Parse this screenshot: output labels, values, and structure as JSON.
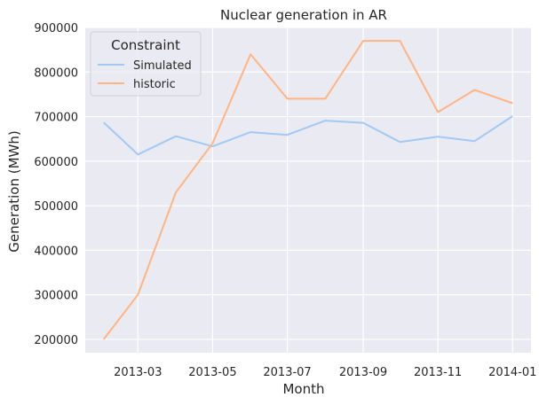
{
  "chart_data": {
    "type": "line",
    "title": "Nuclear generation in AR",
    "xlabel": "Month",
    "ylabel": "Generation (MWh)",
    "x": [
      "2013-02-01",
      "2013-03-01",
      "2013-04-01",
      "2013-05-01",
      "2013-06-01",
      "2013-07-01",
      "2013-08-01",
      "2013-09-01",
      "2013-10-01",
      "2013-11-01",
      "2013-12-01",
      "2014-01-01"
    ],
    "x_ticks": [
      "2013-03",
      "2013-05",
      "2013-07",
      "2013-09",
      "2013-11",
      "2014-01"
    ],
    "y_ticks": [
      200000,
      300000,
      400000,
      500000,
      600000,
      700000,
      800000,
      900000
    ],
    "ylim": [
      170000,
      900000
    ],
    "grid": true,
    "legend": {
      "title": "Constraint",
      "placement": "top-left"
    },
    "series": [
      {
        "name": "Simulated",
        "color": "#a1c9f4",
        "values": [
          687000,
          615000,
          656000,
          633000,
          665000,
          659000,
          691000,
          686000,
          643000,
          655000,
          645000,
          701000
        ]
      },
      {
        "name": "historic",
        "color": "#ffb482",
        "values": [
          200000,
          300000,
          530000,
          640000,
          840000,
          740000,
          740000,
          870000,
          870000,
          710000,
          760000,
          730000
        ]
      }
    ]
  }
}
